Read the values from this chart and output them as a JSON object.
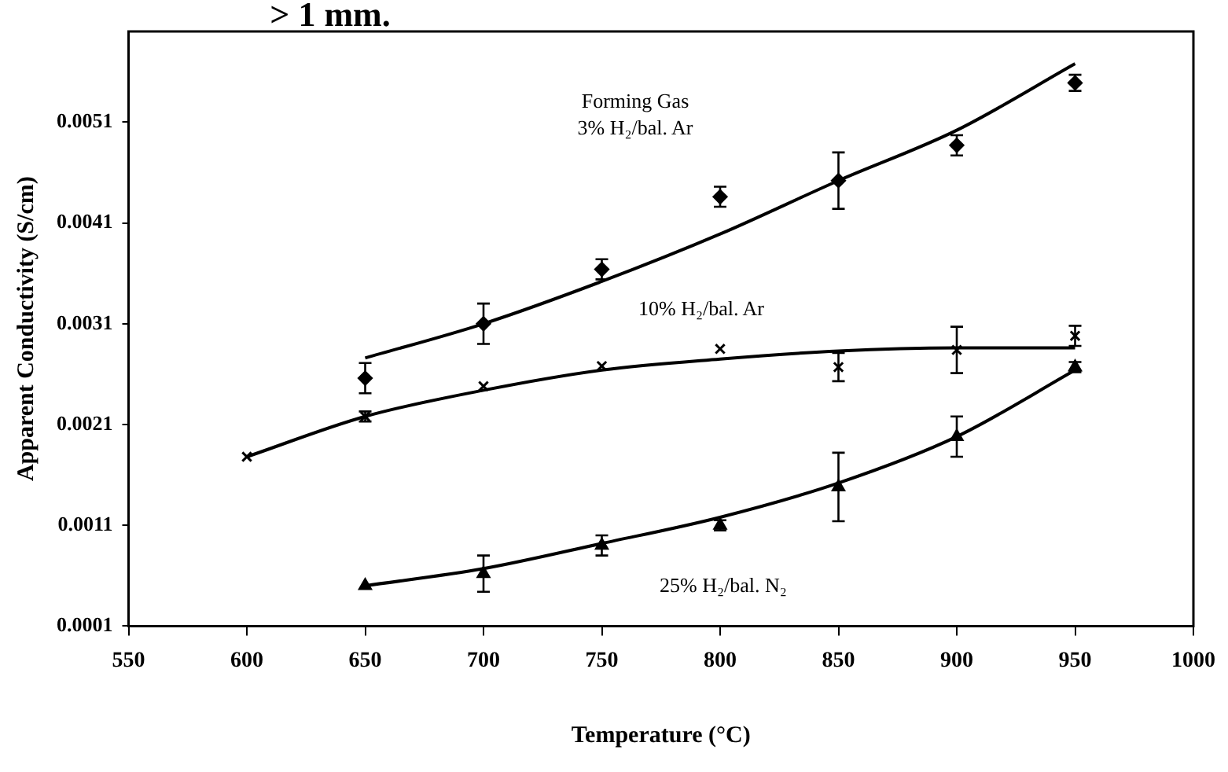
{
  "chart_data": {
    "type": "scatter",
    "xlabel": "Temperature (°C)",
    "ylabel": "Apparent Conductivity (S/cm)",
    "xlim": [
      550,
      1000
    ],
    "xticks": [
      550,
      600,
      650,
      700,
      750,
      800,
      850,
      900,
      950,
      1000
    ],
    "ylim": [
      0.0001,
      0.006
    ],
    "yticks": [
      0.0001,
      0.0011,
      0.0021,
      0.0031,
      0.0041,
      0.0051
    ],
    "grid": false,
    "legend": false,
    "series": [
      {
        "type": "scatter",
        "color": "#000000",
        "marker": "diamond",
        "x": [
          650,
          700,
          750,
          800,
          850,
          900,
          950
        ],
        "values": [
          0.00256,
          0.0031,
          0.00364,
          0.00436,
          0.00452,
          0.00487,
          0.00549
        ],
        "errors": [
          0.00015,
          0.0002,
          0.0001,
          0.0001,
          0.00028,
          0.0001,
          8e-05
        ]
      },
      {
        "type": "scatter",
        "color": "#000000",
        "marker": "cross",
        "x": [
          600,
          650,
          700,
          750,
          800,
          850,
          900,
          950
        ],
        "values": [
          0.00178,
          0.00218,
          0.00248,
          0.00268,
          0.00285,
          0.00267,
          0.00284,
          0.00298
        ],
        "errors": [
          null,
          5e-05,
          null,
          null,
          null,
          0.00014,
          0.00023,
          0.0001
        ]
      },
      {
        "type": "scatter",
        "color": "#000000",
        "marker": "triangle",
        "x": [
          650,
          700,
          750,
          800,
          850,
          900,
          950
        ],
        "values": [
          0.0005,
          0.00062,
          0.0009,
          0.0011,
          0.00148,
          0.00198,
          0.00267
        ],
        "errors": [
          null,
          0.00018,
          0.0001,
          5e-05,
          0.00034,
          0.0002,
          5e-05
        ]
      },
      {
        "type": "line",
        "color": "#000000",
        "marker": "none",
        "x": [
          650,
          700,
          750,
          800,
          850,
          900,
          950
        ],
        "values": [
          0.00276,
          0.0031,
          0.00352,
          0.00399,
          0.00452,
          0.00502,
          0.00568
        ]
      },
      {
        "type": "line",
        "color": "#000000",
        "marker": "none",
        "x": [
          600,
          650,
          700,
          750,
          800,
          850,
          900,
          950
        ],
        "values": [
          0.00178,
          0.00218,
          0.00244,
          0.00264,
          0.00275,
          0.00283,
          0.00286,
          0.00286
        ]
      },
      {
        "type": "line",
        "color": "#000000",
        "marker": "none",
        "x": [
          650,
          700,
          750,
          800,
          850,
          900,
          950
        ],
        "values": [
          0.0005,
          0.00067,
          0.00092,
          0.00118,
          0.00152,
          0.00198,
          0.00264
        ]
      }
    ],
    "annotations": [
      "> 1 mm.",
      "Forming Gas",
      "3% H₂/bal. Ar",
      "10% H₂/bal. Ar",
      "25% H₂/bal. N₂"
    ]
  }
}
